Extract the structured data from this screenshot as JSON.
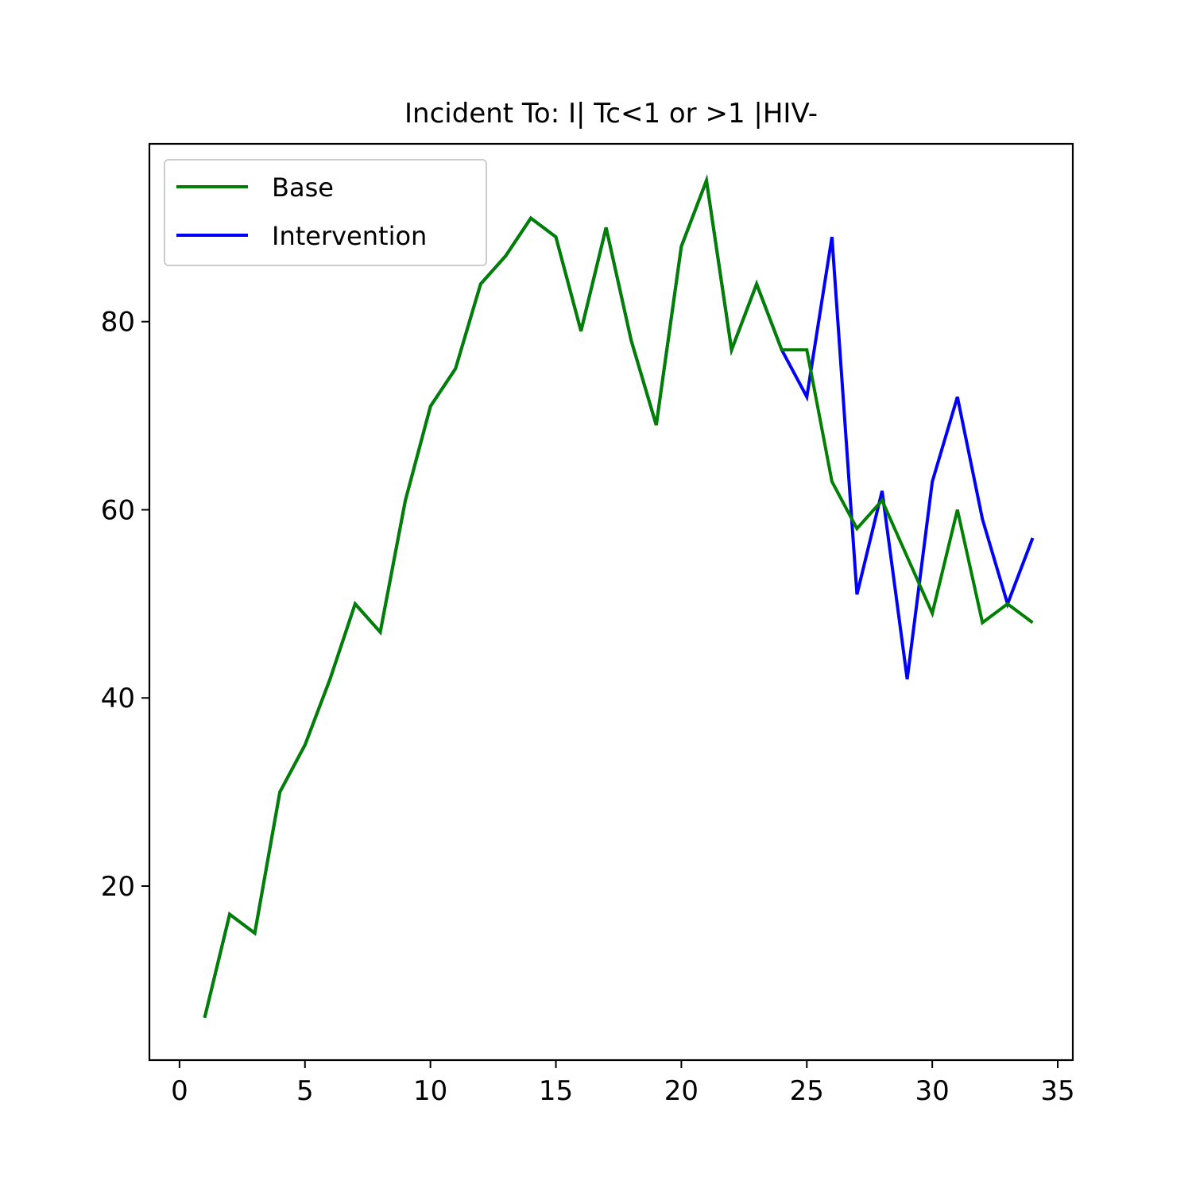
{
  "chart_data": {
    "type": "line",
    "title": "Incident To: I| Tc<1 or >1 |HIV-",
    "xlabel": "",
    "ylabel": "",
    "xlim": [
      -1.2,
      35.6
    ],
    "ylim": [
      1.5,
      98.9
    ],
    "x_ticks": [
      0,
      5,
      10,
      15,
      20,
      25,
      30,
      35
    ],
    "y_ticks": [
      20,
      40,
      60,
      80
    ],
    "grid": false,
    "legend_position": "top-left",
    "series": [
      {
        "name": "Base",
        "color": "#008000",
        "x": [
          1,
          2,
          3,
          4,
          5,
          6,
          7,
          8,
          9,
          10,
          11,
          12,
          13,
          14,
          15,
          16,
          17,
          18,
          19,
          20,
          21,
          22,
          23,
          24,
          25,
          26,
          27,
          28,
          29,
          30,
          31,
          32,
          33,
          34
        ],
        "values": [
          6,
          17,
          15,
          30,
          35,
          42,
          50,
          47,
          61,
          71,
          75,
          84,
          87,
          91,
          89,
          79,
          90,
          78,
          69,
          88,
          95,
          77,
          84,
          77,
          77,
          63,
          58,
          61,
          55,
          49,
          60,
          48,
          50,
          48
        ]
      },
      {
        "name": "Intervention",
        "color": "#0000ff",
        "x": [
          1,
          2,
          3,
          4,
          5,
          6,
          7,
          8,
          9,
          10,
          11,
          12,
          13,
          14,
          15,
          16,
          17,
          18,
          19,
          20,
          21,
          22,
          23,
          24,
          25,
          26,
          27,
          28,
          29,
          30,
          31,
          32,
          33,
          34
        ],
        "values": [
          6,
          17,
          15,
          30,
          35,
          42,
          50,
          47,
          61,
          71,
          75,
          84,
          87,
          91,
          89,
          79,
          90,
          78,
          69,
          88,
          95,
          77,
          84,
          77,
          72,
          89,
          51,
          62,
          42,
          63,
          72,
          59,
          50,
          57
        ]
      }
    ]
  }
}
